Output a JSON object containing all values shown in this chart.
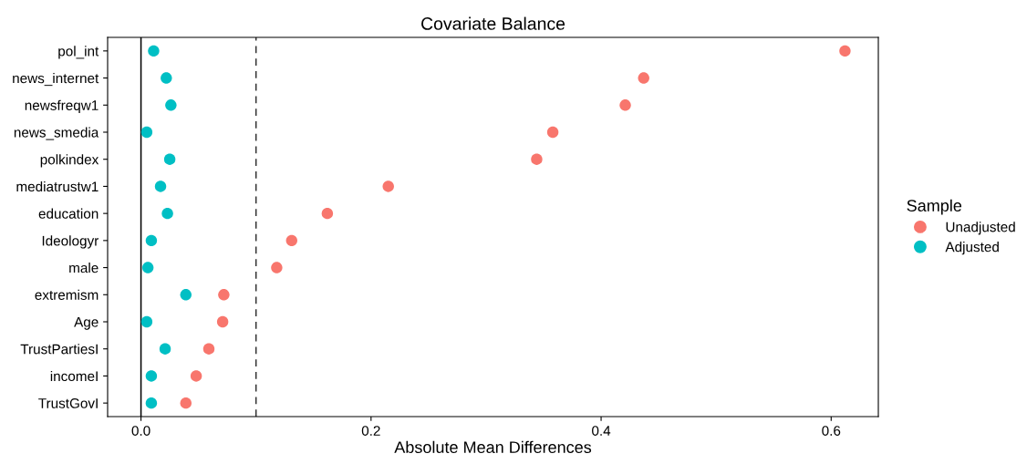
{
  "chart_data": {
    "type": "scatter",
    "title": "Covariate Balance",
    "xlabel": "Absolute Mean Differences",
    "legend_title": "Sample",
    "legend": "right",
    "grid": false,
    "marker": "circle",
    "orientation": "horizontal",
    "categories": [
      "pol_int",
      "news_internet",
      "newsfreqw1",
      "news_smedia",
      "polkindex",
      "mediatrustw1",
      "education",
      "Ideologyr",
      "male",
      "extremism",
      "Age",
      "TrustPartiesI",
      "incomeI",
      "TrustGovI"
    ],
    "xlim": [
      -0.029,
      0.641
    ],
    "xticks": [
      {
        "value": 0,
        "label": "0.0"
      },
      {
        "value": 0.2,
        "label": "0.2"
      },
      {
        "value": 0.4,
        "label": "0.4"
      },
      {
        "value": 0.6,
        "label": "0.6"
      }
    ],
    "series": [
      {
        "name": "Unadjusted",
        "color": "#f8766d",
        "values": [
          0.612,
          0.437,
          0.421,
          0.358,
          0.344,
          0.215,
          0.162,
          0.131,
          0.118,
          0.072,
          0.071,
          0.059,
          0.048,
          0.039
        ]
      },
      {
        "name": "Adjusted",
        "color": "#00bfc4",
        "values": [
          0.011,
          0.022,
          0.026,
          0.005,
          0.025,
          0.017,
          0.023,
          0.009,
          0.006,
          0.039,
          0.005,
          0.021,
          0.009,
          0.009
        ]
      }
    ],
    "ref_lines": [
      {
        "axis": "x",
        "value": 0,
        "color": "#000000",
        "line_style": "solid"
      },
      {
        "axis": "x",
        "value": 0.1,
        "color": "#333333",
        "line_style": "dashed"
      }
    ]
  }
}
